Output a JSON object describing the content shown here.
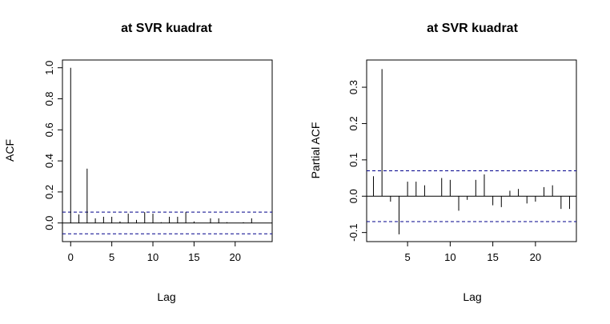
{
  "chart_data": [
    {
      "type": "bar",
      "title": "at SVR kuadrat",
      "xlabel": "Lag",
      "ylabel": "ACF",
      "xlim": [
        -1,
        24.5
      ],
      "ylim": [
        -0.12,
        1.05
      ],
      "xticks": [
        "0",
        "5",
        "10",
        "15",
        "20"
      ],
      "yticks": [
        "0.0",
        "0.2",
        "0.4",
        "0.6",
        "0.8",
        "1.0"
      ],
      "ci": 0.07,
      "zero_line": true,
      "lags": [
        0,
        1,
        2,
        3,
        4,
        5,
        6,
        7,
        8,
        9,
        10,
        11,
        12,
        13,
        14,
        15,
        16,
        17,
        18,
        19,
        20,
        21,
        22,
        23,
        24
      ],
      "values": [
        1.0,
        0.055,
        0.35,
        0.03,
        0.04,
        0.04,
        0.01,
        0.06,
        0.02,
        0.07,
        0.06,
        0.005,
        0.04,
        0.04,
        0.07,
        0.01,
        0.0,
        0.03,
        0.03,
        0.005,
        0.0,
        0.005,
        0.03,
        0.0,
        0.0
      ],
      "colors": {
        "bars": "#000000",
        "ci": "#00008b",
        "frame": "#000000"
      }
    },
    {
      "type": "bar",
      "title": "at SVR kuadrat",
      "xlabel": "Lag",
      "ylabel": "Partial ACF",
      "xlim": [
        0.2,
        24.8
      ],
      "ylim": [
        -0.125,
        0.375
      ],
      "xticks": [
        "5",
        "10",
        "15",
        "20"
      ],
      "yticks": [
        "-0.1",
        "0.0",
        "0.1",
        "0.2",
        "0.3"
      ],
      "ci": 0.07,
      "zero_line": true,
      "lags": [
        1,
        2,
        3,
        4,
        5,
        6,
        7,
        8,
        9,
        10,
        11,
        12,
        13,
        14,
        15,
        16,
        17,
        18,
        19,
        20,
        21,
        22,
        23,
        24
      ],
      "values": [
        0.055,
        0.35,
        -0.015,
        -0.105,
        0.04,
        0.04,
        0.03,
        0.0,
        0.05,
        0.045,
        -0.04,
        -0.01,
        0.045,
        0.06,
        -0.025,
        -0.03,
        0.015,
        0.02,
        -0.02,
        -0.015,
        0.025,
        0.03,
        -0.035,
        -0.035
      ],
      "colors": {
        "bars": "#000000",
        "ci": "#00008b",
        "frame": "#000000"
      }
    }
  ]
}
